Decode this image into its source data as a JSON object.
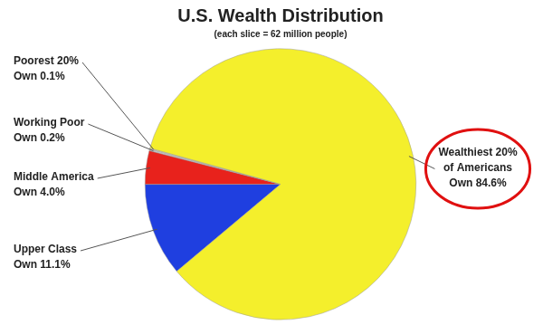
{
  "chart_data": {
    "type": "pie",
    "title": "U.S. Wealth Distribution",
    "subtitle": "(each slice = 62 million people)",
    "categories": [
      "Upper Class",
      "Middle America",
      "Working Poor",
      "Poorest 20%",
      "Wealthiest 20% of Americans"
    ],
    "values": [
      11.1,
      4.0,
      0.2,
      0.1,
      84.6
    ],
    "value_labels": [
      "Own 11.1%",
      "Own 4.0%",
      "Own 0.2%",
      "Own 0.1%",
      "Own 84.6%"
    ],
    "colors": [
      "#1f3fe0",
      "#e8221c",
      "#c8c8c8",
      "#e6e6e6",
      "#f4ef2c"
    ],
    "data_labels": true
  }
}
